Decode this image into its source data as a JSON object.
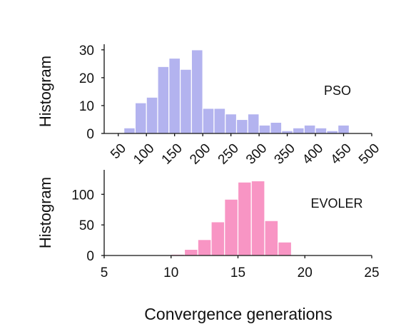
{
  "chart_data": [
    {
      "type": "bar",
      "subtype": "histogram",
      "ylabel": "Histogram",
      "annotation": "PSO",
      "color": "#b3b3ef",
      "annotation_color": "#8f8fe6",
      "xlim": [
        25,
        500
      ],
      "ylim": [
        0,
        32
      ],
      "xticks": [
        "50",
        "100",
        "150",
        "200",
        "250",
        "300",
        "350",
        "400",
        "450",
        "500"
      ],
      "yticks": [
        "0",
        "10",
        "20",
        "30"
      ],
      "bin_width": 20,
      "bin_starts": [
        60,
        80,
        100,
        120,
        140,
        160,
        180,
        200,
        220,
        240,
        260,
        280,
        300,
        320,
        340,
        360,
        380,
        400,
        420,
        440,
        460
      ],
      "values": [
        2,
        11,
        13,
        24,
        27,
        23,
        30,
        9,
        9,
        7,
        5,
        7,
        3,
        4,
        1,
        2,
        3,
        2,
        1,
        3,
        0
      ]
    },
    {
      "type": "bar",
      "subtype": "histogram",
      "ylabel": "Histogram",
      "annotation": "EVOLER",
      "color": "#f895c4",
      "annotation_color": "#e0409a",
      "xlim": [
        5,
        25
      ],
      "ylim": [
        0,
        140
      ],
      "xticks": [
        "5",
        "10",
        "15",
        "20",
        "25"
      ],
      "yticks": [
        "0",
        "50",
        "100"
      ],
      "bin_width": 1,
      "bin_starts": [
        10,
        11,
        12,
        13,
        14,
        15,
        16,
        17,
        18
      ],
      "values": [
        2,
        10,
        26,
        55,
        92,
        120,
        122,
        57,
        22
      ]
    }
  ],
  "xlabel": "Convergence generations"
}
